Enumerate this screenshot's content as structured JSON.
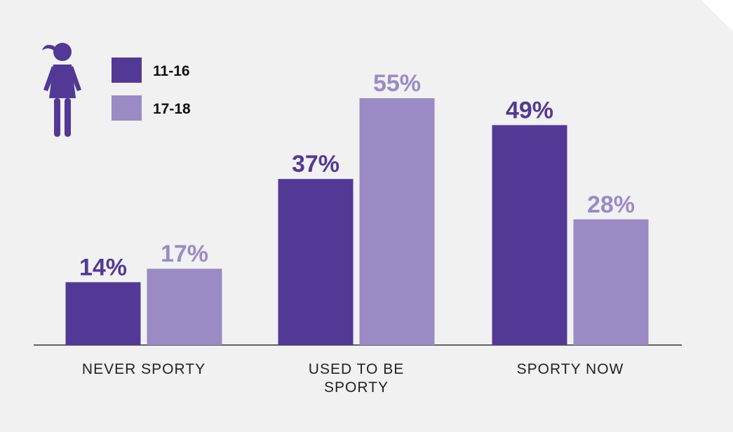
{
  "chart_data": {
    "type": "bar",
    "categories": [
      "NEVER SPORTY",
      "USED TO BE SPORTY",
      "SPORTY NOW"
    ],
    "series": [
      {
        "name": "11-16",
        "color": "#523996",
        "values": [
          14,
          37,
          49
        ],
        "value_labels": [
          "14%",
          "37%",
          "49%"
        ]
      },
      {
        "name": "17-18",
        "color": "#9a8bc4",
        "values": [
          17,
          55,
          28
        ],
        "value_labels": [
          "17%",
          "55%",
          "28%"
        ]
      }
    ]
  }
}
